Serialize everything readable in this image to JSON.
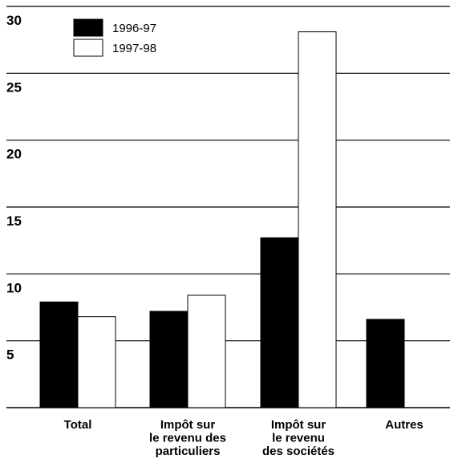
{
  "chart_data": {
    "type": "bar",
    "title": "",
    "xlabel": "",
    "ylabel": "",
    "ylim": [
      0,
      30
    ],
    "yticks": [
      "5",
      "10",
      "15",
      "20",
      "25",
      "30"
    ],
    "grid": true,
    "legend_position": "top-left",
    "categories": [
      [
        "Total"
      ],
      [
        "Impôt sur",
        "le revenu des",
        "particuliers"
      ],
      [
        "Impôt sur",
        "le revenu",
        "des sociétés"
      ],
      [
        "Autres"
      ]
    ],
    "series": [
      {
        "name": "1996-97",
        "color": "#000000",
        "values": [
          7.9,
          7.2,
          12.7,
          6.6
        ]
      },
      {
        "name": "1997-98",
        "color": "#ffffff",
        "values": [
          6.8,
          8.4,
          28.1,
          null
        ]
      }
    ]
  }
}
